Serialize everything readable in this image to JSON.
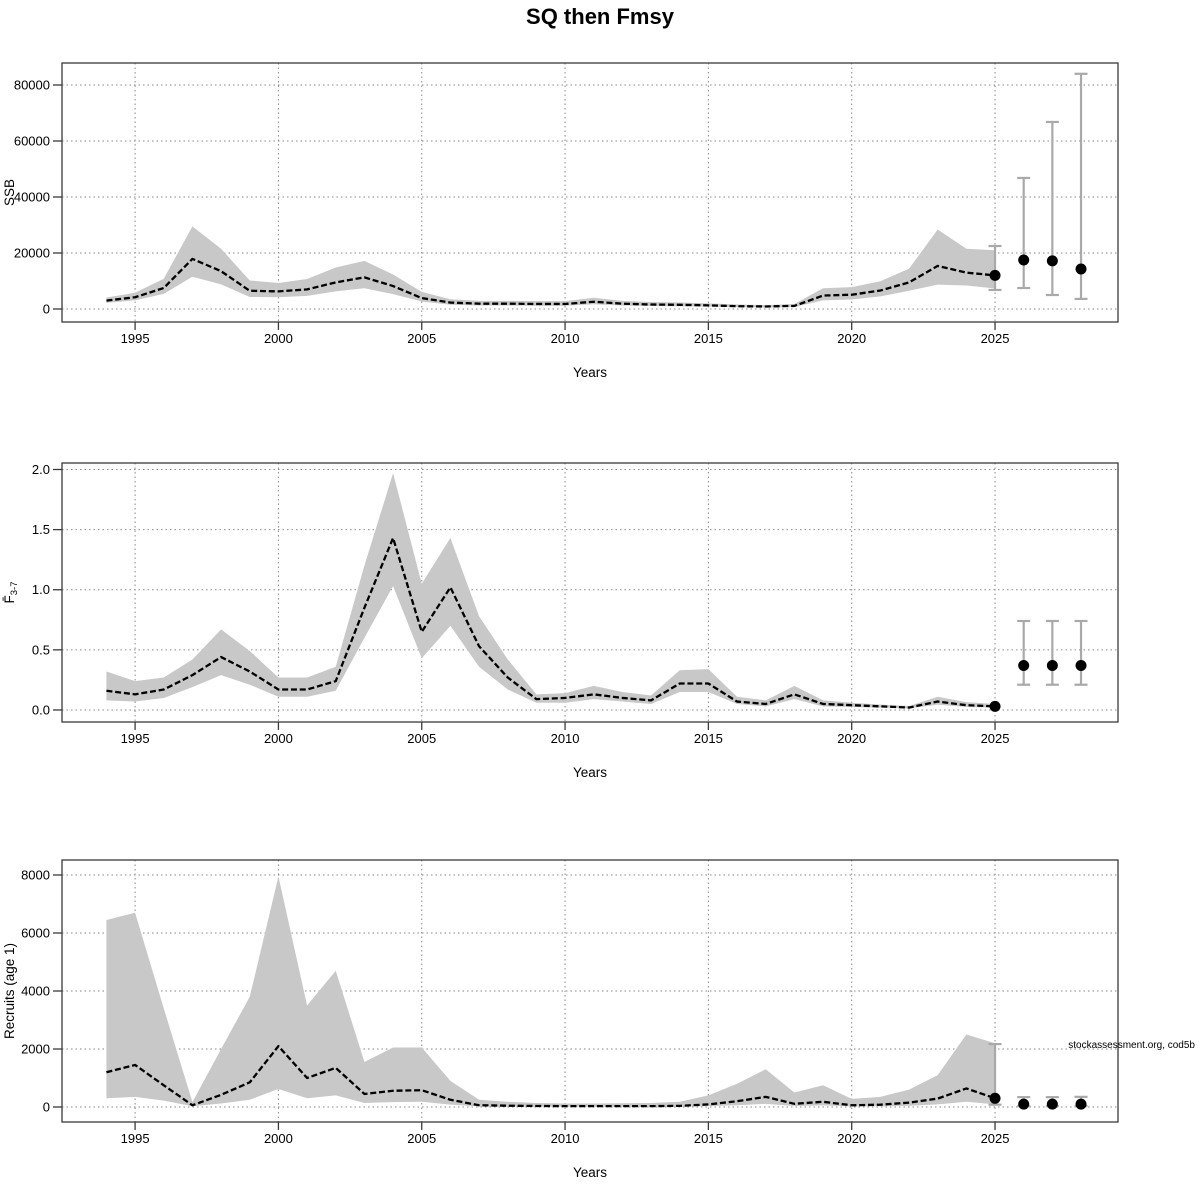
{
  "title": "SQ then Fmsy",
  "annotation": "stockassessment.org, cod5b",
  "colors": {
    "band": "#c8c8c8",
    "median_line": "#000000",
    "error_bar": "#a9a9a9",
    "point": "#000000",
    "grid": "#8a8a8a",
    "axis": "#3a3a3a"
  },
  "chart_data": [
    {
      "type": "line",
      "name": "ssb",
      "ylabel": {
        "main": "SSB",
        "sub": ""
      },
      "xlabel": "Years",
      "x": [
        1994,
        1995,
        1996,
        1997,
        1998,
        1999,
        2000,
        2001,
        2002,
        2003,
        2004,
        2005,
        2006,
        2007,
        2008,
        2009,
        2010,
        2011,
        2012,
        2013,
        2014,
        2015,
        2016,
        2017,
        2018,
        2019,
        2020,
        2021,
        2022,
        2023,
        2024,
        2025
      ],
      "median": [
        3000,
        4200,
        7500,
        17900,
        13500,
        6500,
        6300,
        7000,
        9500,
        11300,
        8200,
        3900,
        2300,
        1900,
        1900,
        1800,
        1800,
        2600,
        1900,
        1600,
        1500,
        1300,
        1000,
        900,
        1100,
        4800,
        5100,
        6600,
        9500,
        15400,
        13000,
        12000
      ],
      "lo": [
        2200,
        3100,
        5400,
        11500,
        8800,
        4300,
        4200,
        4700,
        6300,
        7400,
        5300,
        2700,
        1500,
        1250,
        1250,
        1150,
        1150,
        1700,
        1250,
        1050,
        950,
        850,
        650,
        550,
        700,
        3100,
        3400,
        4500,
        6500,
        8700,
        8400,
        7300
      ],
      "hi": [
        4100,
        5800,
        10800,
        29500,
        21500,
        10200,
        9300,
        10700,
        14800,
        17200,
        12300,
        6100,
        3500,
        2900,
        2900,
        2800,
        2800,
        4000,
        2900,
        2500,
        2300,
        2000,
        1600,
        1400,
        1800,
        7400,
        7800,
        9900,
        14400,
        28400,
        21500,
        21000
      ],
      "final": {
        "year": 2025,
        "value": 12000,
        "bar": [
          6800,
          22500
        ]
      },
      "forecast": {
        "years": [
          2026,
          2027,
          2028
        ],
        "median": [
          17500,
          17200,
          14300
        ],
        "lo": [
          7500,
          5000,
          3600
        ],
        "hi": [
          46800,
          66800,
          84000
        ]
      },
      "yticks": {
        "values": [
          0,
          20000,
          40000,
          60000,
          80000
        ],
        "labels": [
          "0",
          "20000",
          "40000",
          "60000",
          "80000"
        ]
      },
      "xticks": {
        "values": [
          1995,
          2000,
          2005,
          2010,
          2015,
          2020,
          2025
        ],
        "labels": [
          "1995",
          "2000",
          "2005",
          "2010",
          "2015",
          "2020",
          "2025"
        ]
      },
      "xrange": [
        1992.45,
        2029.29
      ],
      "yrange": [
        -4643,
        87857
      ],
      "grid": true,
      "legend": "none"
    },
    {
      "type": "line",
      "name": "fbar",
      "ylabel": {
        "main": "F̄",
        "sub": "3-7"
      },
      "xlabel": "Years",
      "x": [
        1994,
        1995,
        1996,
        1997,
        1998,
        1999,
        2000,
        2001,
        2002,
        2003,
        2004,
        2005,
        2006,
        2007,
        2008,
        2009,
        2010,
        2011,
        2012,
        2013,
        2014,
        2015,
        2016,
        2017,
        2018,
        2019,
        2020,
        2021,
        2022,
        2023,
        2024,
        2025
      ],
      "median": [
        0.16,
        0.13,
        0.17,
        0.29,
        0.44,
        0.32,
        0.17,
        0.17,
        0.24,
        0.85,
        1.43,
        0.65,
        1.02,
        0.53,
        0.27,
        0.09,
        0.1,
        0.13,
        0.1,
        0.08,
        0.22,
        0.22,
        0.07,
        0.05,
        0.13,
        0.05,
        0.04,
        0.03,
        0.02,
        0.07,
        0.04,
        0.03
      ],
      "lo": [
        0.08,
        0.07,
        0.1,
        0.19,
        0.29,
        0.21,
        0.11,
        0.11,
        0.16,
        0.6,
        1.03,
        0.43,
        0.7,
        0.36,
        0.17,
        0.06,
        0.06,
        0.09,
        0.07,
        0.05,
        0.15,
        0.15,
        0.05,
        0.03,
        0.09,
        0.03,
        0.025,
        0.02,
        0.013,
        0.045,
        0.025,
        0.02
      ],
      "hi": [
        0.32,
        0.24,
        0.27,
        0.42,
        0.67,
        0.49,
        0.27,
        0.27,
        0.36,
        1.2,
        1.97,
        1.05,
        1.43,
        0.78,
        0.42,
        0.13,
        0.14,
        0.2,
        0.15,
        0.12,
        0.33,
        0.34,
        0.11,
        0.08,
        0.2,
        0.08,
        0.06,
        0.045,
        0.033,
        0.11,
        0.065,
        0.05
      ],
      "final": {
        "year": 2025,
        "value": 0.03,
        "bar": null
      },
      "forecast": {
        "years": [
          2026,
          2027,
          2028
        ],
        "median": [
          0.37,
          0.37,
          0.37
        ],
        "lo": [
          0.21,
          0.21,
          0.21
        ],
        "hi": [
          0.74,
          0.74,
          0.74
        ]
      },
      "yticks": {
        "values": [
          0,
          0.5,
          1.0,
          1.5,
          2.0
        ],
        "labels": [
          "0.0",
          "0.5",
          "1.0",
          "1.5",
          "2.0"
        ]
      },
      "xticks": {
        "values": [
          1995,
          2000,
          2005,
          2010,
          2015,
          2020,
          2025
        ],
        "labels": [
          "1995",
          "2000",
          "2005",
          "2010",
          "2015",
          "2020",
          "2025"
        ]
      },
      "xrange": [
        1992.45,
        2029.29
      ],
      "yrange": [
        -0.1,
        2.054
      ],
      "grid": true,
      "legend": "none"
    },
    {
      "type": "line",
      "name": "recruits",
      "ylabel": {
        "main": "Recruits (age 1)",
        "sub": ""
      },
      "xlabel": "Years",
      "x": [
        1994,
        1995,
        1996,
        1997,
        1998,
        1999,
        2000,
        2001,
        2002,
        2003,
        2004,
        2005,
        2006,
        2007,
        2008,
        2009,
        2010,
        2011,
        2012,
        2013,
        2014,
        2015,
        2016,
        2017,
        2018,
        2019,
        2020,
        2021,
        2022,
        2023,
        2024,
        2025
      ],
      "median": [
        1200,
        1450,
        750,
        60,
        420,
        850,
        2100,
        1000,
        1350,
        450,
        560,
        580,
        250,
        60,
        45,
        35,
        30,
        30,
        30,
        30,
        40,
        90,
        200,
        350,
        110,
        180,
        60,
        80,
        150,
        290,
        640,
        300
      ],
      "lo": [
        300,
        350,
        220,
        25,
        120,
        250,
        620,
        300,
        400,
        140,
        170,
        180,
        80,
        20,
        15,
        12,
        10,
        10,
        10,
        10,
        15,
        30,
        60,
        110,
        35,
        55,
        20,
        25,
        45,
        90,
        180,
        90
      ],
      "hi": [
        6450,
        6700,
        3400,
        170,
        2000,
        3800,
        7950,
        3500,
        4700,
        1550,
        2050,
        2050,
        900,
        250,
        180,
        140,
        120,
        120,
        130,
        140,
        180,
        400,
        800,
        1300,
        500,
        750,
        280,
        350,
        600,
        1100,
        2500,
        2200
      ],
      "final": {
        "year": 2025,
        "value": 300,
        "bar": [
          80,
          2170
        ]
      },
      "forecast": {
        "years": [
          2026,
          2027,
          2028
        ],
        "median": [
          100,
          100,
          100
        ],
        "lo": [
          30,
          30,
          30
        ],
        "hi": [
          340,
          340,
          350
        ]
      },
      "yticks": {
        "values": [
          0,
          2000,
          4000,
          6000,
          8000
        ],
        "labels": [
          "0",
          "2000",
          "4000",
          "6000",
          "8000"
        ]
      },
      "xticks": {
        "values": [
          1995,
          2000,
          2005,
          2010,
          2015,
          2020,
          2025
        ],
        "labels": [
          "1995",
          "2000",
          "2005",
          "2010",
          "2015",
          "2020",
          "2025"
        ]
      },
      "xrange": [
        1992.45,
        2029.29
      ],
      "yrange": [
        -517,
        8517
      ],
      "grid": true,
      "legend": "none"
    }
  ]
}
